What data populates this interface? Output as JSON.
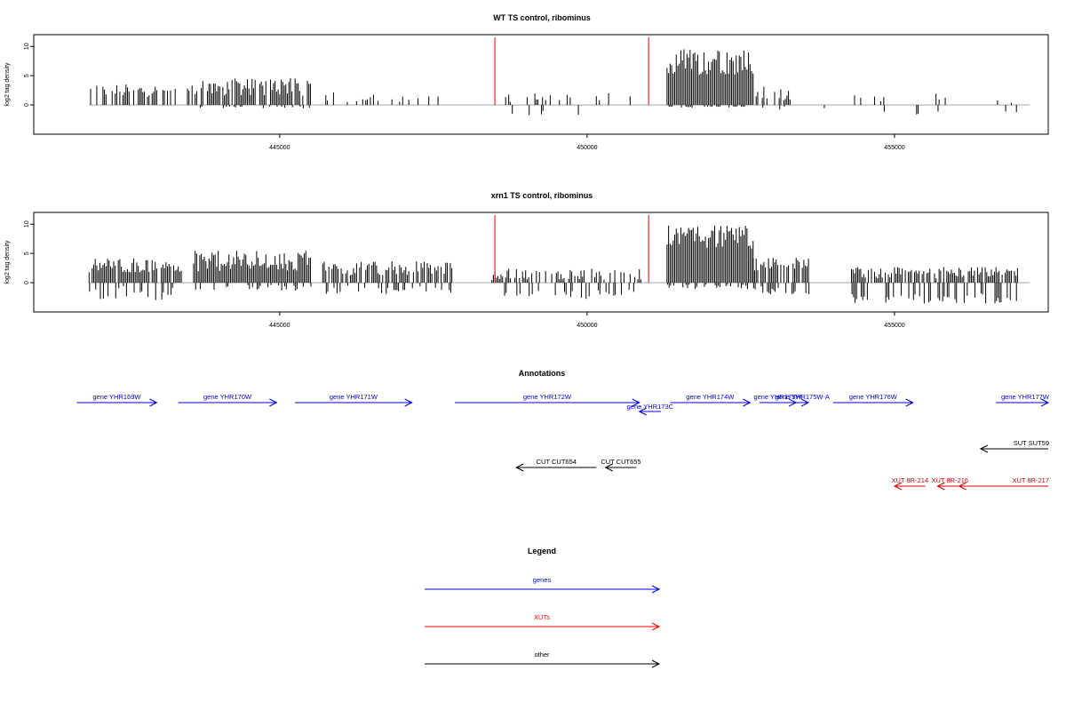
{
  "chart_data": [
    {
      "type": "bar",
      "title": "WT TS control, ribominus",
      "ylabel": "log2 tag density",
      "xlim": [
        441000,
        457500
      ],
      "ylim": [
        -5,
        12
      ],
      "x_ticks": [
        445000,
        450000,
        455000
      ],
      "x_tick_labels": [
        "445000",
        "450000",
        "455000"
      ],
      "y_ticks": [
        0,
        5,
        10
      ],
      "y_tick_labels": [
        "0",
        "5",
        "10"
      ],
      "marker_lines_x": [
        448500,
        451000
      ],
      "marker_color": "#e00000",
      "regions": [
        {
          "start": 441900,
          "end": 443300,
          "pos_mean": 2.0,
          "pos_amp": 2.2,
          "neg_mean": 0,
          "neg_amp": 0,
          "density": 0.55
        },
        {
          "start": 443500,
          "end": 445500,
          "pos_mean": 2.5,
          "pos_amp": 3.0,
          "neg_mean": 0,
          "neg_amp": 0.6,
          "density": 0.8
        },
        {
          "start": 445700,
          "end": 447800,
          "pos_mean": 1.0,
          "pos_amp": 1.8,
          "neg_mean": 0,
          "neg_amp": 0,
          "density": 0.18
        },
        {
          "start": 448600,
          "end": 450700,
          "pos_mean": 0.8,
          "pos_amp": 1.8,
          "neg_mean": -0.6,
          "neg_amp": 1.2,
          "density": 0.15
        },
        {
          "start": 451300,
          "end": 452700,
          "pos_mean": 6.5,
          "pos_amp": 4.5,
          "neg_mean": 0,
          "neg_amp": 0.5,
          "density": 1.0
        },
        {
          "start": 452700,
          "end": 453300,
          "pos_mean": 1.5,
          "pos_amp": 2.5,
          "neg_mean": 0,
          "neg_amp": 1.0,
          "density": 0.5
        },
        {
          "start": 453800,
          "end": 457000,
          "pos_mean": 0.8,
          "pos_amp": 1.8,
          "neg_mean": -0.5,
          "neg_amp": 1.2,
          "density": 0.1
        }
      ]
    },
    {
      "type": "bar",
      "title": "xrn1 TS control, ribominus",
      "ylabel": "log2 tag density",
      "xlim": [
        441000,
        457500
      ],
      "ylim": [
        -5,
        12
      ],
      "x_ticks": [
        445000,
        450000,
        455000
      ],
      "x_tick_labels": [
        "445000",
        "450000",
        "455000"
      ],
      "y_ticks": [
        0,
        5,
        10
      ],
      "y_tick_labels": [
        "0",
        "5",
        "10"
      ],
      "marker_lines_x": [
        448500,
        451000
      ],
      "marker_color": "#e00000",
      "regions": [
        {
          "start": 441900,
          "end": 443400,
          "pos_mean": 2.5,
          "pos_amp": 2.5,
          "neg_mean": -0.5,
          "neg_amp": 2.5,
          "density": 0.9
        },
        {
          "start": 443600,
          "end": 445500,
          "pos_mean": 3.0,
          "pos_amp": 3.5,
          "neg_mean": -0.4,
          "neg_amp": 1.0,
          "density": 1.0
        },
        {
          "start": 445700,
          "end": 447800,
          "pos_mean": 2.0,
          "pos_amp": 2.4,
          "neg_mean": -0.5,
          "neg_amp": 1.5,
          "density": 0.75
        },
        {
          "start": 448400,
          "end": 450900,
          "pos_mean": 1.0,
          "pos_amp": 2.0,
          "neg_mean": -1.2,
          "neg_amp": 1.6,
          "density": 0.6
        },
        {
          "start": 451300,
          "end": 452700,
          "pos_mean": 7.0,
          "pos_amp": 4.0,
          "neg_mean": -0.3,
          "neg_amp": 0.8,
          "density": 1.0
        },
        {
          "start": 452700,
          "end": 453600,
          "pos_mean": 2.5,
          "pos_amp": 2.5,
          "neg_mean": -0.5,
          "neg_amp": 1.5,
          "density": 0.9
        },
        {
          "start": 454300,
          "end": 457000,
          "pos_mean": 1.3,
          "pos_amp": 2.0,
          "neg_mean": -1.8,
          "neg_amp": 1.8,
          "density": 0.85
        }
      ]
    }
  ],
  "annotations": {
    "title": "Annotations",
    "xlim": [
      441000,
      457500
    ],
    "features": [
      {
        "label": "gene YHR169W",
        "start": 441700,
        "end": 443000,
        "strand": "+",
        "row": 0,
        "color": "#0000cc"
      },
      {
        "label": "gene YHR170W",
        "start": 443350,
        "end": 444950,
        "strand": "+",
        "row": 0,
        "color": "#0000cc"
      },
      {
        "label": "gene YHR171W",
        "start": 445250,
        "end": 447150,
        "strand": "+",
        "row": 0,
        "color": "#0000cc"
      },
      {
        "label": "gene YHR172W",
        "start": 447850,
        "end": 450850,
        "strand": "+",
        "row": 0,
        "color": "#0000cc"
      },
      {
        "label": "gene YHR173C",
        "start": 450850,
        "end": 451200,
        "strand": "-",
        "row": 1,
        "color": "#0000cc"
      },
      {
        "label": "gene YHR174W",
        "start": 451350,
        "end": 452650,
        "strand": "+",
        "row": 0,
        "color": "#0000cc"
      },
      {
        "label": "gene YHR175W",
        "start": 452800,
        "end": 453400,
        "strand": "+",
        "row": 0,
        "color": "#0000cc"
      },
      {
        "label": "gene YHR175W-A",
        "start": 453400,
        "end": 453600,
        "strand": "+",
        "row": 0,
        "color": "#0000cc"
      },
      {
        "label": "gene YHR176W",
        "start": 454000,
        "end": 455300,
        "strand": "+",
        "row": 0,
        "color": "#0000cc"
      },
      {
        "label": "gene YHR177W",
        "start": 456650,
        "end": 457500,
        "strand": "+",
        "row": 0,
        "color": "#0000cc"
      },
      {
        "label": "SUT SUT59",
        "start": 456400,
        "end": 457500,
        "strand": "-",
        "row": 3,
        "color": "#000000"
      },
      {
        "label": "CUT CUT654",
        "start": 448850,
        "end": 450150,
        "strand": "-",
        "row": 4,
        "color": "#000000"
      },
      {
        "label": "CUT CUT655",
        "start": 450300,
        "end": 450800,
        "strand": "-",
        "row": 4,
        "color": "#000000"
      },
      {
        "label": "XUT 8R-214",
        "start": 455000,
        "end": 455500,
        "strand": "-",
        "row": 5,
        "color": "#cc0000"
      },
      {
        "label": "XUT 8R-216",
        "start": 455700,
        "end": 456100,
        "strand": "-",
        "row": 5,
        "color": "#cc0000"
      },
      {
        "label": "XUT 8R-217",
        "start": 456050,
        "end": 457500,
        "strand": "-",
        "row": 5,
        "color": "#cc0000"
      }
    ]
  },
  "legend": {
    "title": "Legend",
    "items": [
      {
        "label": "genes",
        "color": "#0000ff"
      },
      {
        "label": "XUTs",
        "color": "#ff0000"
      },
      {
        "label": "other",
        "color": "#000000"
      }
    ]
  }
}
